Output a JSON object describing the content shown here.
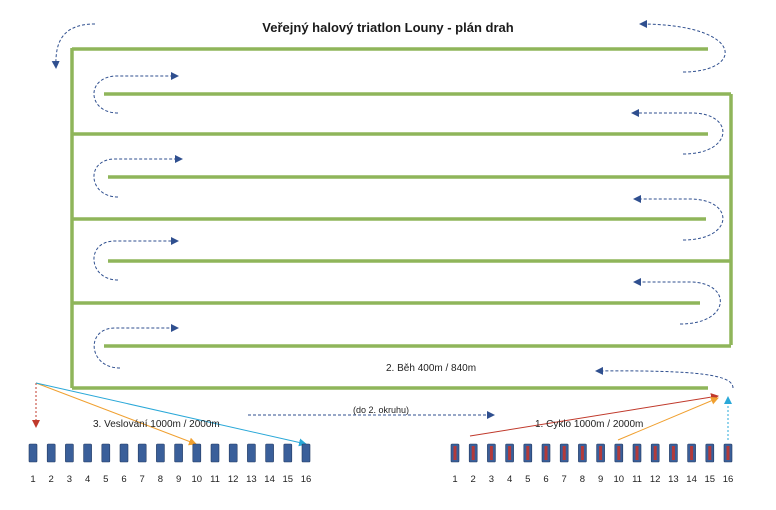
{
  "title": "Veřejný halový triatlon Louny - plán drah",
  "labels": {
    "run": "2.   Běh 400m / 840m",
    "rowing": "3.   Veslování 1000m / 2000m",
    "bike": "1.   Cyklo 1000m / 2000m",
    "transfer": "(do 2. okruhu)"
  },
  "rowing_stations": [
    "1",
    "2",
    "3",
    "4",
    "5",
    "6",
    "7",
    "8",
    "9",
    "10",
    "11",
    "12",
    "13",
    "14",
    "15",
    "16"
  ],
  "bike_stations": [
    "1",
    "2",
    "3",
    "4",
    "5",
    "6",
    "7",
    "8",
    "9",
    "10",
    "11",
    "12",
    "13",
    "14",
    "15",
    "16"
  ],
  "colors": {
    "track": "#8fb55a",
    "station_rowing": "#3a5f9a",
    "station_bike": "#3a5f9a",
    "station_bike_accent": "#b33a3a",
    "arrow_blue": "#2f4f8f",
    "arrow_red": "#c0392b",
    "arrow_orange": "#f0a030",
    "arrow_cyan": "#2aa8d8"
  }
}
